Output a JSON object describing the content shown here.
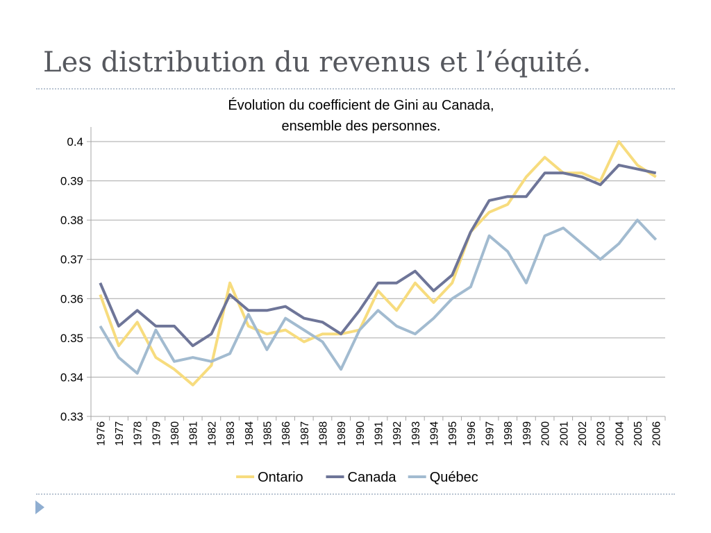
{
  "slide": {
    "title": "Les distribution du revenus et l’équité."
  },
  "colors": {
    "ontario": "#f7dc7e",
    "canada": "#6e7598",
    "quebec": "#a2bbd0",
    "title": "#56585e",
    "gridline": "#a6a6a6",
    "separator": "#b8c4d2",
    "marker": "#8faed1"
  },
  "chart_data": {
    "type": "line",
    "title": "Évolution du coefficient de Gini au Canada,",
    "subtitle": "ensemble des personnes.",
    "categories": [
      "1976",
      "1977",
      "1978",
      "1979",
      "1980",
      "1981",
      "1982",
      "1983",
      "1984",
      "1985",
      "1986",
      "1987",
      "1988",
      "1989",
      "1990",
      "1991",
      "1992",
      "1993",
      "1994",
      "1995",
      "1996",
      "1997",
      "1998",
      "1999",
      "2000",
      "2001",
      "2002",
      "2003",
      "2004",
      "2005",
      "2006"
    ],
    "yticks": [
      "0.33",
      "0.34",
      "0.35",
      "0.36",
      "0.37",
      "0.38",
      "0.39",
      "0.4"
    ],
    "ylim": [
      0.33,
      0.4
    ],
    "grid": true,
    "legend_position": "bottom",
    "series": [
      {
        "name": "Ontario",
        "color": "#f7dc7e",
        "values": [
          0.361,
          0.348,
          0.354,
          0.345,
          0.342,
          0.338,
          0.343,
          0.364,
          0.353,
          0.351,
          0.352,
          0.349,
          0.351,
          0.351,
          0.352,
          0.362,
          0.357,
          0.364,
          0.359,
          0.364,
          0.377,
          0.382,
          0.384,
          0.391,
          0.396,
          0.392,
          0.392,
          0.39,
          0.4,
          0.394,
          0.391
        ]
      },
      {
        "name": "Canada",
        "color": "#6e7598",
        "values": [
          0.364,
          0.353,
          0.357,
          0.353,
          0.353,
          0.348,
          0.351,
          0.361,
          0.357,
          0.357,
          0.358,
          0.355,
          0.354,
          0.351,
          0.357,
          0.364,
          0.364,
          0.367,
          0.362,
          0.366,
          0.377,
          0.385,
          0.386,
          0.386,
          0.392,
          0.392,
          0.391,
          0.389,
          0.394,
          0.393,
          0.392
        ]
      },
      {
        "name": "Québec",
        "color": "#a2bbd0",
        "values": [
          0.353,
          0.345,
          0.341,
          0.352,
          0.344,
          0.345,
          0.344,
          0.346,
          0.356,
          0.347,
          0.355,
          0.352,
          0.349,
          0.342,
          0.352,
          0.357,
          0.353,
          0.351,
          0.355,
          0.36,
          0.363,
          0.376,
          0.372,
          0.364,
          0.376,
          0.378,
          0.374,
          0.37,
          0.374,
          0.38,
          0.375
        ]
      }
    ]
  }
}
